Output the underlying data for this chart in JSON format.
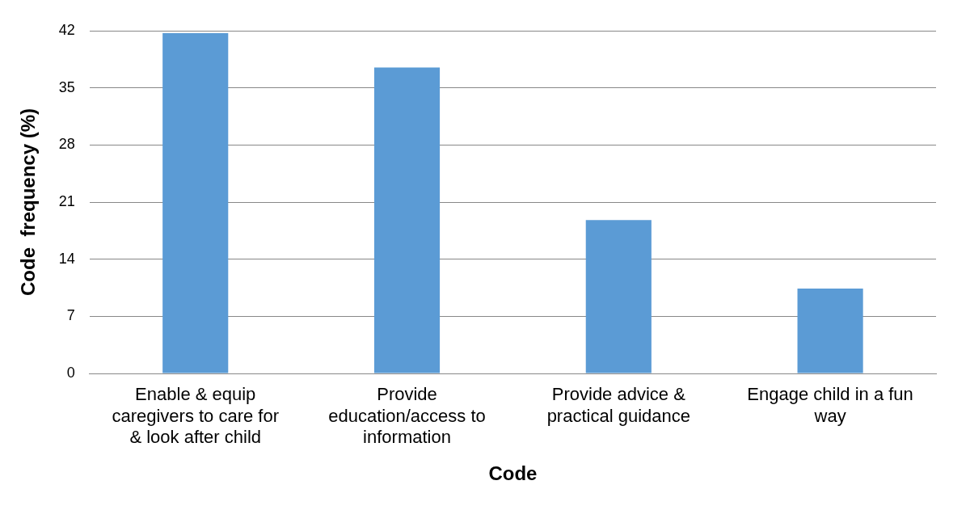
{
  "chart_data": {
    "type": "bar",
    "xlabel": "Code",
    "ylabel": "Code  frequency (%)",
    "categories": [
      "Enable & equip caregivers to care for & look after child",
      "Provide education/access to information",
      "Provide advice & practical guidance",
      "Engage child in a fun way"
    ],
    "values": [
      41.7,
      37.5,
      18.8,
      10.4
    ],
    "color": "#5b9bd5",
    "ylim": [
      0,
      42
    ],
    "yticks": [
      0,
      7,
      14,
      21,
      28,
      35,
      42
    ],
    "grid": "y",
    "legend": false
  }
}
